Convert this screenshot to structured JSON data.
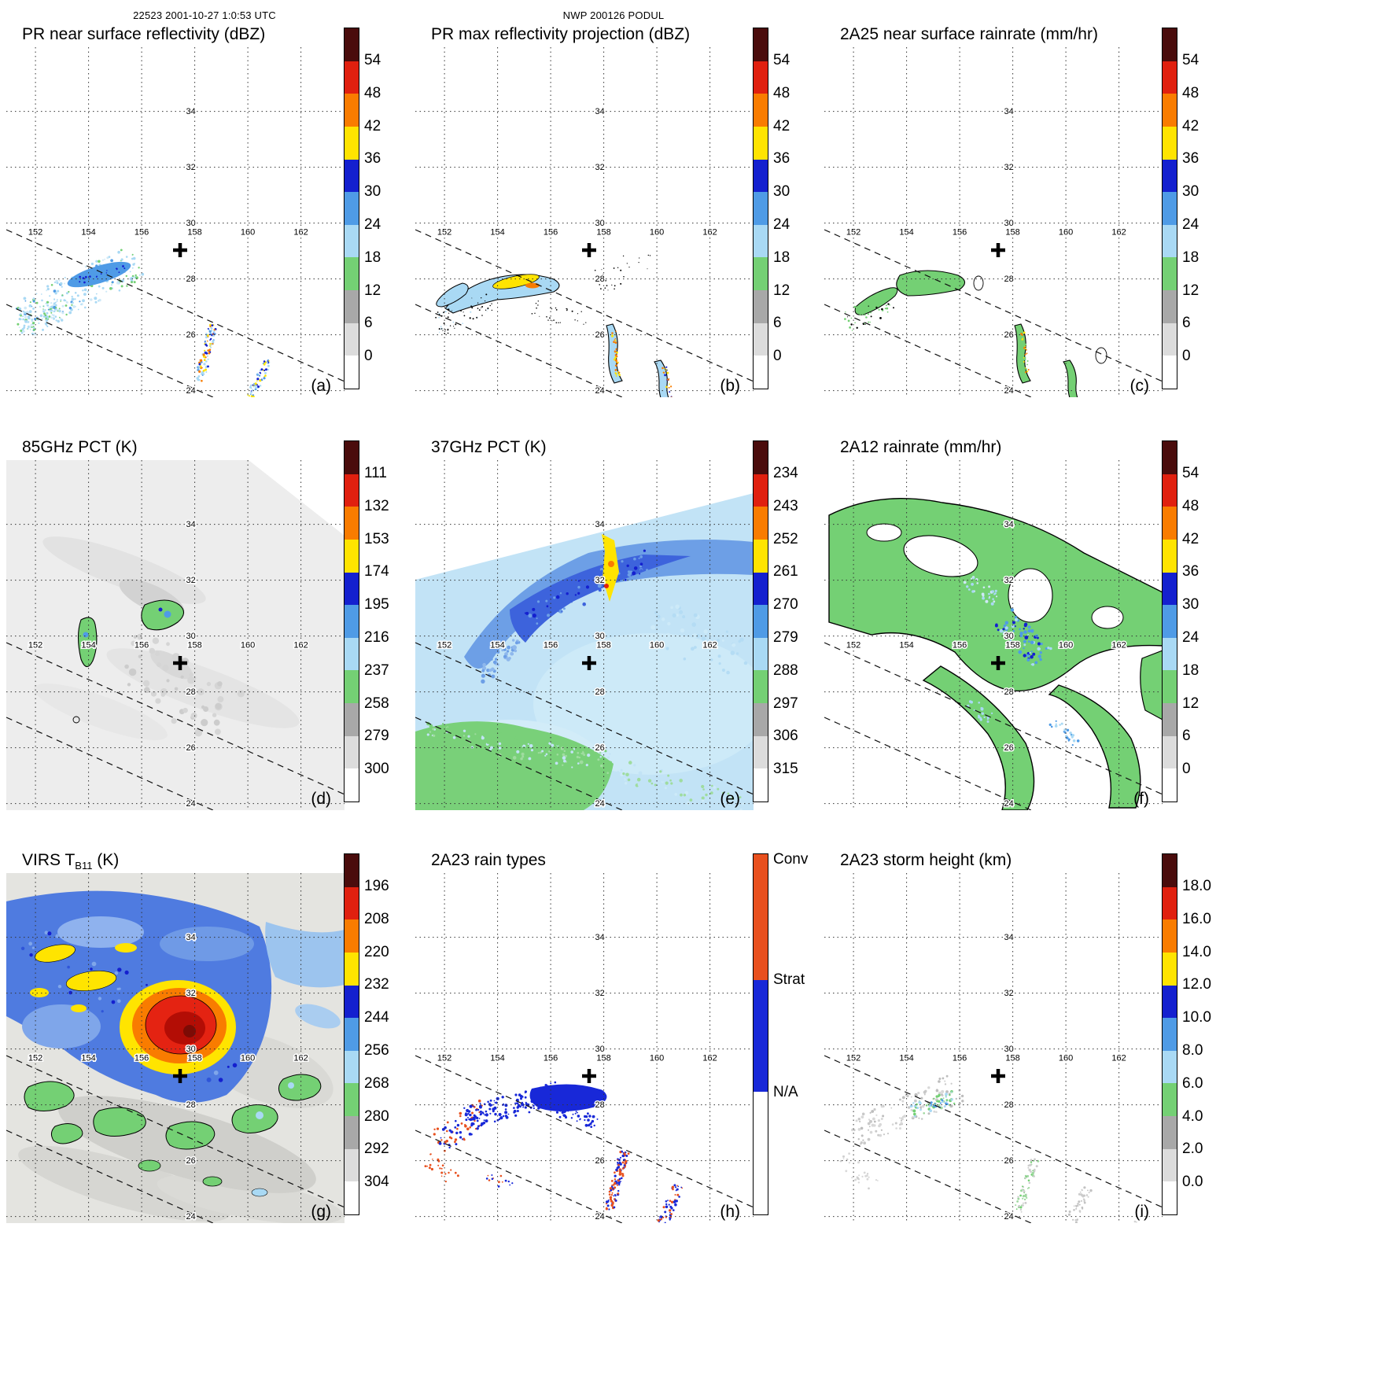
{
  "header": {
    "left": "22523 2001-10-27 1:0:53 UTC",
    "center": "NWP 200126 PODUL"
  },
  "chart_data": {
    "type": "heatmap",
    "subtype": "satellite-precipitation-multipanel-maps",
    "storm_center_marker": "+",
    "lon_ticks": [
      "152",
      "154",
      "156",
      "158",
      "160",
      "162"
    ],
    "lat_ticks": [
      "34",
      "32",
      "30",
      "28",
      "26",
      "24"
    ],
    "lon_range": [
      151,
      163
    ],
    "lat_range": [
      23.7,
      36.3
    ],
    "grid": "dotted",
    "legend_position": "right",
    "palette_top_to_bottom": [
      "#4a0c0c",
      "#e0200f",
      "#f97c00",
      "#ffe400",
      "#1420cf",
      "#4f9be6",
      "#a9d9f4",
      "#74d074",
      "#a8a8a8",
      "#dcdcdc",
      "#ffffff"
    ],
    "panels": [
      {
        "id": "a",
        "letter": "(a)",
        "title": "PR near surface reflectivity (dBZ)",
        "colorbar": {
          "type": "scale",
          "ticks": [
            "54",
            "48",
            "42",
            "36",
            "30",
            "24",
            "18",
            "12",
            "6",
            "0"
          ]
        },
        "description": "Scattered 18-45 dBZ echoes in three diagonal rainbands inside the narrow PR swath"
      },
      {
        "id": "b",
        "letter": "(b)",
        "title": "PR max reflectivity projection (dBZ)",
        "colorbar": {
          "type": "scale",
          "ticks": [
            "54",
            "48",
            "42",
            "36",
            "30",
            "24",
            "18",
            "12",
            "6",
            "0"
          ]
        },
        "description": "Black-contoured echo bands with embedded 36-48 dBZ yellow/orange cores"
      },
      {
        "id": "c",
        "letter": "(c)",
        "title": "2A25 near surface rainrate (mm/hr)",
        "colorbar": {
          "type": "scale",
          "ticks": [
            "54",
            "48",
            "42",
            "36",
            "30",
            "24",
            "18",
            "12",
            "6",
            "0"
          ]
        },
        "description": "Light rain (green) bands along the PR swath with small embedded heavier cells"
      },
      {
        "id": "d",
        "letter": "(d)",
        "title": "85GHz PCT (K)",
        "colorbar": {
          "type": "scale",
          "ticks": [
            "111",
            "132",
            "153",
            "174",
            "195",
            "216",
            "237",
            "258",
            "279",
            "300"
          ]
        },
        "description": "Mostly warm (>260 K) gray background with small depressed-PCT green/blue cells near 154E and 156-157E around 29-30N"
      },
      {
        "id": "e",
        "letter": "(e)",
        "title": "37GHz PCT (K)",
        "colorbar": {
          "type": "scale",
          "ticks": [
            "234",
            "243",
            "252",
            "261",
            "270",
            "279",
            "288",
            "297",
            "306",
            "315"
          ]
        },
        "description": "Broad 270-285 K field with a darker-blue depressed band and a yellow <261 K core near 157E 30N; green >288 K to the south"
      },
      {
        "id": "f",
        "letter": "(f)",
        "title": "2A12 rainrate (mm/hr)",
        "colorbar": {
          "type": "scale",
          "ticks": [
            "54",
            "48",
            "42",
            "36",
            "30",
            "24",
            "18",
            "12",
            "6",
            "0"
          ]
        },
        "description": "Widespread light rain (green, outlined) across the TMI swath with blue heavier cells near the storm center"
      },
      {
        "id": "g",
        "letter": "(g)",
        "title": "VIRS T",
        "title_sub": "B11",
        "title_end": " (K)",
        "colorbar": {
          "type": "scale",
          "ticks": [
            "196",
            "208",
            "220",
            "232",
            "244",
            "256",
            "268",
            "280",
            "292",
            "304"
          ]
        },
        "description": "Cold cloud tops: red/orange <220 K core near 157E 30N ringed by yellow and blue, green 256-268 K band, warm gray elsewhere"
      },
      {
        "id": "h",
        "letter": "(h)",
        "title": "2A23 rain types",
        "colorbar": {
          "type": "categorical",
          "segments": [
            {
              "label": "Conv",
              "color": "#e8501e",
              "span": 0.35
            },
            {
              "label": "Strat",
              "color": "#1828d8",
              "span": 0.31
            },
            {
              "label": "N/A",
              "color": "#ffffff",
              "span": 0.34
            }
          ]
        },
        "description": "Stratiform (blue) echo bands with scattered convective (orange) pixels along the PR swath"
      },
      {
        "id": "i",
        "letter": "(i)",
        "title": "2A23 storm height (km)",
        "colorbar": {
          "type": "scale",
          "ticks": [
            "18.0",
            "16.0",
            "14.0",
            "12.0",
            "10.0",
            "8.0",
            "6.0",
            "4.0",
            "2.0",
            "0.0"
          ]
        },
        "description": "Storm heights mostly 2-8 km (gray/green) with isolated higher green-blue tops near 154-155E 29N"
      }
    ]
  }
}
